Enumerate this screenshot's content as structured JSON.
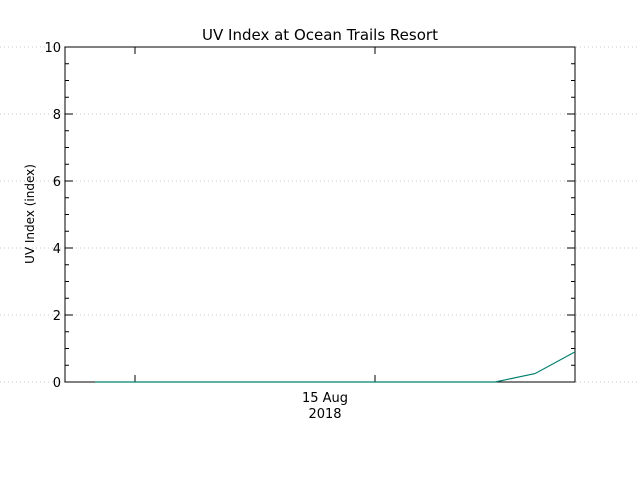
{
  "chart_data": {
    "type": "line",
    "title": "UV Index at Ocean Trails Resort",
    "ylabel": "UV Index (index)",
    "xlabel": "",
    "x_tick_labels": [
      {
        "line1": "15 Aug",
        "line2": "2018"
      }
    ],
    "ylim": [
      0,
      10
    ],
    "y_ticks": [
      0,
      2,
      4,
      6,
      8,
      10
    ],
    "grid": true,
    "grid_style": "dotted",
    "series": [
      {
        "color": "#00806e",
        "values": [
          {
            "t": "2018-08-14T23:00",
            "y": 0.0
          },
          {
            "t": "2018-08-15T00:00",
            "y": 0.0
          },
          {
            "t": "2018-08-15T01:00",
            "y": 0.0
          },
          {
            "t": "2018-08-15T02:00",
            "y": 0.0
          },
          {
            "t": "2018-08-15T03:00",
            "y": 0.0
          },
          {
            "t": "2018-08-15T04:00",
            "y": 0.0
          },
          {
            "t": "2018-08-15T05:00",
            "y": 0.0
          },
          {
            "t": "2018-08-15T06:00",
            "y": 0.0
          },
          {
            "t": "2018-08-15T07:00",
            "y": 0.0
          },
          {
            "t": "2018-08-15T08:00",
            "y": 0.0
          },
          {
            "t": "2018-08-15T09:00",
            "y": 0.0
          },
          {
            "t": "2018-08-15T10:00",
            "y": 0.25
          },
          {
            "t": "2018-08-15T11:00",
            "y": 0.9
          }
        ]
      }
    ]
  }
}
